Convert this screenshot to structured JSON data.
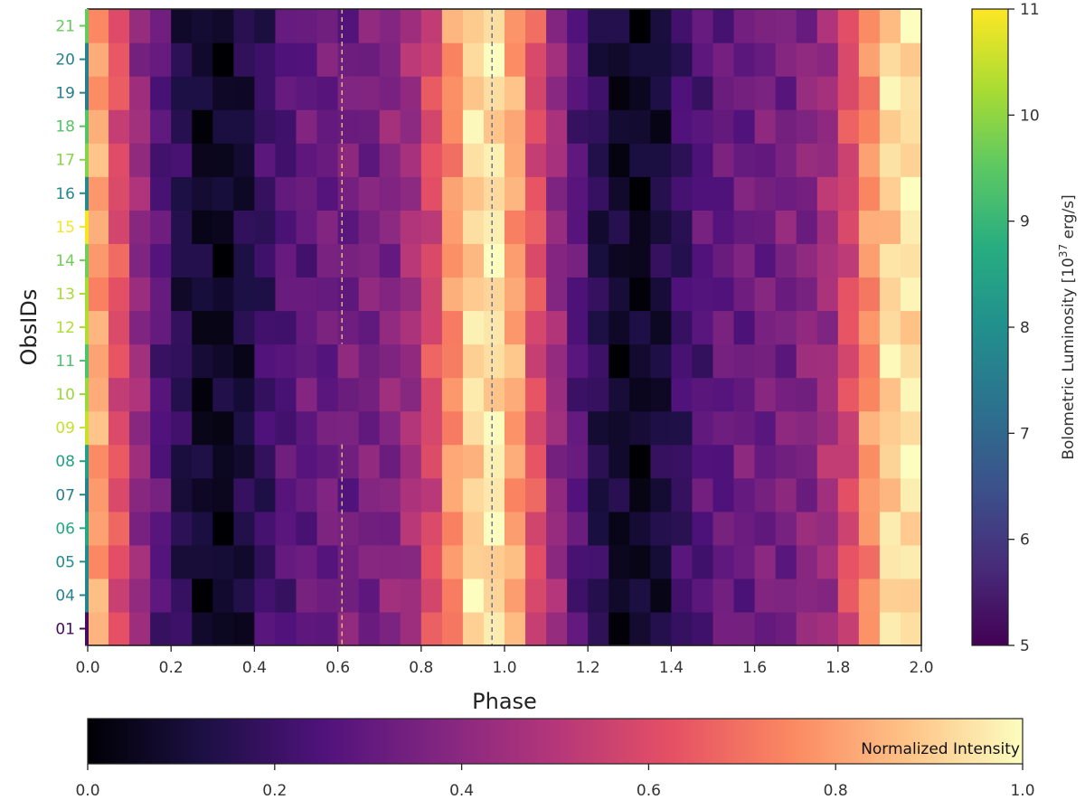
{
  "chart_data": {
    "type": "heatmap",
    "xlabel": "Phase",
    "ylabel": "ObsIDs",
    "xlim": [
      0.0,
      2.0
    ],
    "x_ticks": [
      "0.0",
      "0.2",
      "0.4",
      "0.6",
      "0.8",
      "1.0",
      "1.2",
      "1.4",
      "1.6",
      "1.8",
      "2.0"
    ],
    "phase_bins": 40,
    "rows": [
      {
        "obsid": "01",
        "luminosity": 5.2
      },
      {
        "obsid": "04",
        "luminosity": 7.7
      },
      {
        "obsid": "05",
        "luminosity": 7.9
      },
      {
        "obsid": "06",
        "luminosity": 8.6
      },
      {
        "obsid": "07",
        "luminosity": 7.6
      },
      {
        "obsid": "08",
        "luminosity": 8.4
      },
      {
        "obsid": "09",
        "luminosity": 10.5
      },
      {
        "obsid": "10",
        "luminosity": 10.1
      },
      {
        "obsid": "11",
        "luminosity": 9.3
      },
      {
        "obsid": "12",
        "luminosity": 10.3
      },
      {
        "obsid": "13",
        "luminosity": 10.2
      },
      {
        "obsid": "14",
        "luminosity": 9.7
      },
      {
        "obsid": "15",
        "luminosity": 10.9
      },
      {
        "obsid": "16",
        "luminosity": 7.8
      },
      {
        "obsid": "17",
        "luminosity": 9.9
      },
      {
        "obsid": "18",
        "luminosity": 9.4
      },
      {
        "obsid": "19",
        "luminosity": 7.5
      },
      {
        "obsid": "20",
        "luminosity": 7.6
      },
      {
        "obsid": "21",
        "luminosity": 9.6
      }
    ],
    "profile_nodes": {
      "phase": [
        0.0,
        0.05,
        0.1,
        0.15,
        0.2,
        0.25,
        0.3,
        0.35,
        0.4,
        0.45,
        0.5,
        0.55,
        0.6,
        0.65,
        0.7,
        0.75,
        0.8,
        0.85,
        0.9,
        0.95,
        1.0
      ],
      "intensity": [
        0.9,
        0.72,
        0.5,
        0.34,
        0.2,
        0.1,
        0.05,
        0.07,
        0.16,
        0.24,
        0.29,
        0.31,
        0.33,
        0.34,
        0.36,
        0.4,
        0.5,
        0.68,
        0.86,
        0.97,
        0.93
      ]
    },
    "vertical_lines": [
      {
        "phase": 0.61,
        "color": "#e8c97a",
        "style": "dashed",
        "gap_between_obsids": [
          "11",
          "09"
        ]
      },
      {
        "phase": 0.97,
        "color": "#556b9a",
        "style": "dashed"
      }
    ],
    "luminosity_colorbar": {
      "label": "Bolometric Luminosity [10",
      "label_exponent": "37",
      "label_unit": " erg/s]",
      "range": [
        5,
        11
      ],
      "ticks": [
        "5",
        "6",
        "7",
        "8",
        "9",
        "10",
        "11"
      ],
      "colormap": "viridis"
    },
    "intensity_colorbar": {
      "label": "Normalized Intensity",
      "range": [
        0.0,
        1.0
      ],
      "ticks": [
        "0.0",
        "0.2",
        "0.4",
        "0.6",
        "0.8",
        "1.0"
      ],
      "colormap": "magma"
    }
  }
}
